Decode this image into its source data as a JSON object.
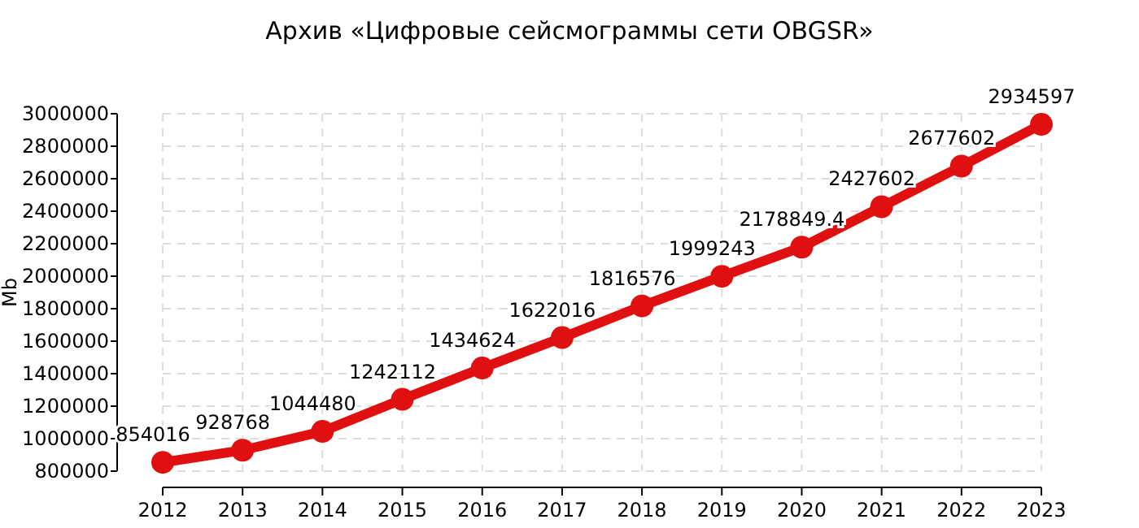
{
  "chart_data": {
    "type": "line",
    "title": "Архив «Цифровые сейсмограммы сети OBGSR»",
    "ylabel": "Mb",
    "categories": [
      "2012",
      "2013",
      "2014",
      "2015",
      "2016",
      "2017",
      "2018",
      "2019",
      "2020",
      "2021",
      "2022",
      "2023"
    ],
    "series": [
      {
        "color": "#e01010",
        "values": [
          854016,
          928768,
          1044480,
          1242112,
          1434624,
          1622016,
          1816576,
          1999243,
          2178849.4,
          2427602,
          2677602,
          2934597
        ]
      }
    ],
    "ylim": [
      800000,
      3000000
    ],
    "yticks": [
      800000,
      1000000,
      1200000,
      1400000,
      1600000,
      1800000,
      2000000,
      2200000,
      2400000,
      2600000,
      2800000,
      3000000
    ],
    "grid": true,
    "marker": "circle",
    "line_style": "solid",
    "data_labels": true
  }
}
